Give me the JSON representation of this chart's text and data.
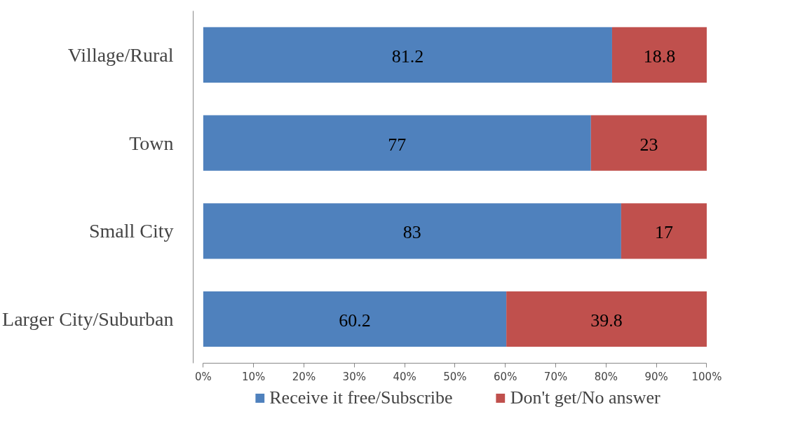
{
  "chart_data": {
    "type": "bar",
    "orientation": "horizontal",
    "stacked": true,
    "categories": [
      "Village/Rural",
      "Town",
      "Small City",
      "Larger City/Suburban"
    ],
    "series": [
      {
        "name": "Receive it free/Subscribe",
        "color": "#4f81bd",
        "values": [
          81.2,
          77,
          83,
          60.2
        ]
      },
      {
        "name": "Don't get/No answer",
        "color": "#c0504d",
        "values": [
          18.8,
          23,
          17,
          39.8
        ]
      }
    ],
    "xlim": [
      0,
      100
    ],
    "xticks": [
      {
        "value": 0,
        "label": "0%"
      },
      {
        "value": 10,
        "label": "10%"
      },
      {
        "value": 20,
        "label": "20%"
      },
      {
        "value": 30,
        "label": "30%"
      },
      {
        "value": 40,
        "label": "40%"
      },
      {
        "value": 50,
        "label": "50%"
      },
      {
        "value": 60,
        "label": "60%"
      },
      {
        "value": 70,
        "label": "70%"
      },
      {
        "value": 80,
        "label": "80%"
      },
      {
        "value": 90,
        "label": "90%"
      },
      {
        "value": 100,
        "label": "100%"
      }
    ],
    "data_labels": true,
    "legend": "bottom",
    "grid": false
  }
}
